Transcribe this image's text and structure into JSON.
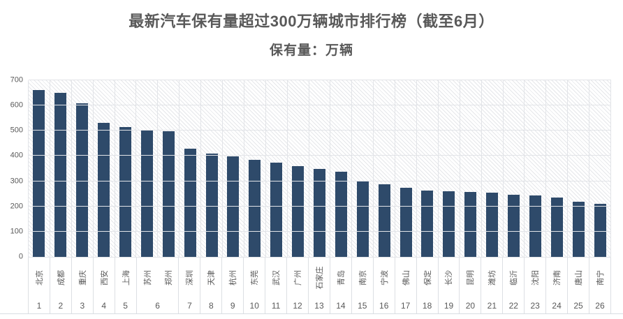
{
  "header": {
    "title": "最新汽车保有量超过300万辆城市排行榜（截至6月）",
    "subtitle": "保有量：万辆"
  },
  "colors": {
    "bar": "#2e4a6a",
    "title_text": "#595959",
    "axis_text": "#595959",
    "gridline": "#e2e4e8",
    "label_separator": "#dcdfe3"
  },
  "chart_data": {
    "type": "bar",
    "title": "最新汽车保有量超过300万辆城市排行榜（截至6月）",
    "subtitle": "保有量：万辆",
    "unit": "万辆",
    "categories": [
      "北京",
      "成都",
      "重庆",
      "西安",
      "上海",
      "苏州",
      "郑州",
      "深圳",
      "天津",
      "杭州",
      "东莞",
      "武汉",
      "广州",
      "石家庄",
      "青岛",
      "南京",
      "宁波",
      "佛山",
      "保定",
      "长沙",
      "昆明",
      "潍坊",
      "临沂",
      "沈阳",
      "济南",
      "唐山",
      "南宁"
    ],
    "values": [
      662,
      650,
      610,
      532,
      515,
      503,
      497,
      430,
      409,
      399,
      384,
      373,
      361,
      349,
      338,
      302,
      287,
      273,
      262,
      260,
      257,
      255,
      246,
      244,
      234,
      220,
      209
    ],
    "rank_groups": [
      {
        "label": "1",
        "span": 1
      },
      {
        "label": "2",
        "span": 1
      },
      {
        "label": "3",
        "span": 1
      },
      {
        "label": "4",
        "span": 1
      },
      {
        "label": "5",
        "span": 1
      },
      {
        "label": "6",
        "span": 2
      },
      {
        "label": "7",
        "span": 1
      },
      {
        "label": "8",
        "span": 1
      },
      {
        "label": "9",
        "span": 1
      },
      {
        "label": "10",
        "span": 1
      },
      {
        "label": "11",
        "span": 1
      },
      {
        "label": "12",
        "span": 1
      },
      {
        "label": "13",
        "span": 1
      },
      {
        "label": "14",
        "span": 1
      },
      {
        "label": "15",
        "span": 1
      },
      {
        "label": "16",
        "span": 1
      },
      {
        "label": "17",
        "span": 1
      },
      {
        "label": "18",
        "span": 1
      },
      {
        "label": "19",
        "span": 1
      },
      {
        "label": "20",
        "span": 1
      },
      {
        "label": "21",
        "span": 1
      },
      {
        "label": "22",
        "span": 1
      },
      {
        "label": "23",
        "span": 1
      },
      {
        "label": "24",
        "span": 1
      },
      {
        "label": "25",
        "span": 1
      },
      {
        "label": "26",
        "span": 1
      }
    ],
    "xlabel": "",
    "ylabel": "",
    "ylim": [
      0,
      700
    ],
    "yticks": [
      0,
      100,
      200,
      300,
      400,
      500,
      600,
      700
    ],
    "grid": true,
    "grid_pattern_fill": "light-downward-diagonal",
    "legend": "none",
    "bar_color": "#2e4a6a"
  }
}
